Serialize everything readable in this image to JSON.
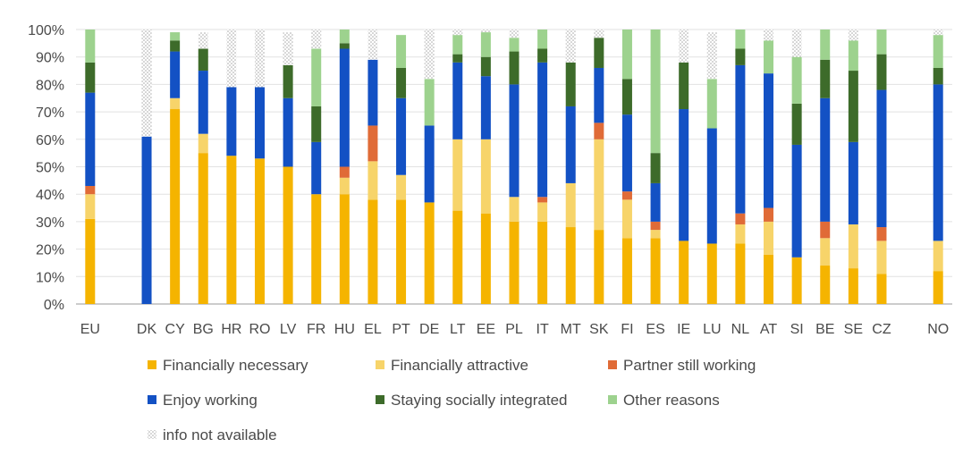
{
  "chart_data": {
    "type": "bar",
    "stacked": true,
    "categories": [
      "EU",
      "",
      "DK",
      "CY",
      "BG",
      "HR",
      "RO",
      "LV",
      "FR",
      "HU",
      "EL",
      "PT",
      "DE",
      "LT",
      "EE",
      "PL",
      "IT",
      "MT",
      "SK",
      "FI",
      "ES",
      "IE",
      "LU",
      "NL",
      "AT",
      "SI",
      "BE",
      "SE",
      "CZ",
      "",
      "NO"
    ],
    "ylim": [
      0,
      100
    ],
    "yticks": [
      "0%",
      "10%",
      "20%",
      "30%",
      "40%",
      "50%",
      "60%",
      "70%",
      "80%",
      "90%",
      "100%"
    ],
    "grid": "horizontal",
    "legend_position": "bottom",
    "series": [
      {
        "name": "Financially necessary",
        "color": "#F5B400",
        "pattern": false,
        "values": [
          31,
          0,
          0,
          71,
          55,
          54,
          53,
          50,
          40,
          40,
          38,
          38,
          37,
          34,
          33,
          30,
          30,
          28,
          27,
          24,
          24,
          23,
          22,
          22,
          18,
          17,
          14,
          13,
          11,
          0,
          12
        ]
      },
      {
        "name": "Financially attractive",
        "color": "#F7D46A",
        "pattern": false,
        "values": [
          9,
          0,
          0,
          4,
          7,
          0,
          0,
          0,
          0,
          6,
          14,
          9,
          0,
          26,
          27,
          9,
          7,
          16,
          33,
          14,
          3,
          0,
          0,
          7,
          12,
          0,
          10,
          16,
          12,
          0,
          11
        ]
      },
      {
        "name": "Partner still working",
        "color": "#E06B37",
        "pattern": false,
        "values": [
          3,
          0,
          0,
          0,
          0,
          0,
          0,
          0,
          0,
          4,
          13,
          0,
          0,
          0,
          0,
          0,
          2,
          0,
          6,
          3,
          3,
          0,
          0,
          4,
          5,
          0,
          6,
          0,
          5,
          0,
          0
        ]
      },
      {
        "name": "Enjoy working",
        "color": "#1351C4",
        "pattern": false,
        "values": [
          34,
          0,
          61,
          17,
          23,
          25,
          26,
          25,
          19,
          43,
          24,
          28,
          28,
          28,
          23,
          41,
          49,
          28,
          20,
          28,
          14,
          48,
          42,
          54,
          49,
          41,
          45,
          30,
          50,
          0,
          57
        ]
      },
      {
        "name": "Staying socially integrated",
        "color": "#3D6B2A",
        "pattern": false,
        "values": [
          11,
          0,
          0,
          4,
          8,
          0,
          0,
          12,
          13,
          2,
          0,
          11,
          0,
          3,
          7,
          12,
          5,
          16,
          11,
          13,
          11,
          17,
          0,
          6,
          0,
          15,
          14,
          26,
          13,
          0,
          6
        ]
      },
      {
        "name": "Other reasons",
        "color": "#9DD28E",
        "pattern": false,
        "values": [
          12,
          0,
          0,
          3,
          0,
          0,
          0,
          0,
          21,
          5,
          0,
          12,
          17,
          7,
          9,
          5,
          7,
          0,
          0,
          18,
          45,
          0,
          18,
          7,
          12,
          17,
          11,
          11,
          9,
          0,
          12
        ]
      },
      {
        "name": "info not available",
        "color": "#BDBDBD",
        "pattern": true,
        "values": [
          0,
          0,
          39,
          0,
          6,
          21,
          21,
          12,
          7,
          0,
          11,
          0,
          18,
          2,
          1,
          3,
          0,
          12,
          3,
          0,
          0,
          12,
          17,
          0,
          4,
          10,
          0,
          4,
          0,
          0,
          2
        ]
      }
    ]
  }
}
